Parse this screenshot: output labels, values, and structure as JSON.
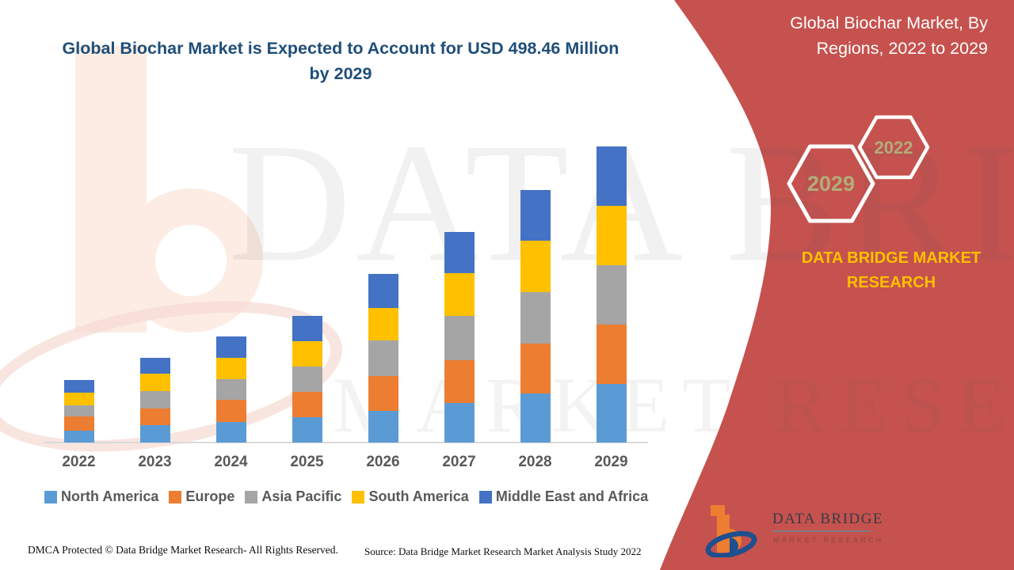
{
  "header": {
    "main_title": "Global Biochar Market is Expected to Account for USD 498.46 Million by 2029",
    "panel_title": "Global Biochar Market, By Regions, 2022 to 2029"
  },
  "panel": {
    "hexagons": {
      "left_label": "2029",
      "right_label": "2022"
    },
    "brand_text": "DATA BRIDGE MARKET RESEARCH",
    "colors": {
      "panel_red": "#c5524e",
      "brand_yellow": "#ffc000",
      "hexagon_text": "#b3ac79"
    }
  },
  "watermark": {
    "letter": "b",
    "line1": "DATA BRIDGE",
    "line2": "MARKET RESEARCH"
  },
  "logo": {
    "name_line": "DATA BRIDGE",
    "sub_line": "MARKET RESEARCH"
  },
  "footer": {
    "dmca": "DMCA Protected © Data Bridge Market Research- All Rights Reserved.",
    "source": "Source: Data Bridge Market Research Market Analysis Study 2022"
  },
  "chart_data": {
    "type": "bar",
    "stacked": true,
    "title": "Global Biochar Market is Expected to Account for USD 498.46 Million by 2029",
    "unit": "USD Million (estimated from bar heights; 2029 total labeled as 498.46)",
    "categories": [
      "2022",
      "2023",
      "2024",
      "2025",
      "2026",
      "2027",
      "2028",
      "2029"
    ],
    "series": [
      {
        "name": "North America",
        "color": "#5B9BD5",
        "values": [
          20,
          29,
          35,
          43,
          53,
          67,
          83,
          98
        ]
      },
      {
        "name": "Europe",
        "color": "#ED7D31",
        "values": [
          24,
          28,
          37,
          43,
          59,
          72,
          84,
          100
        ]
      },
      {
        "name": "Asia Pacific",
        "color": "#A5A5A5",
        "values": [
          19,
          29,
          35,
          43,
          60,
          75,
          87,
          100
        ]
      },
      {
        "name": "South America",
        "color": "#FFC000",
        "values": [
          21,
          29,
          36,
          43,
          55,
          72,
          87,
          100
        ]
      },
      {
        "name": "Middle East and Africa",
        "color": "#4472C4",
        "values": [
          21,
          27,
          36,
          43,
          57,
          69,
          85,
          100
        ]
      }
    ],
    "totals_estimated": [
      105,
      142,
      179,
      215,
      284,
      355,
      426,
      498.46
    ],
    "annotations": {
      "headline_value": "USD 498.46 Million by 2029"
    },
    "legend_position": "bottom",
    "gridlines": false,
    "x_axis_visible": true,
    "y_axis_visible": false
  }
}
